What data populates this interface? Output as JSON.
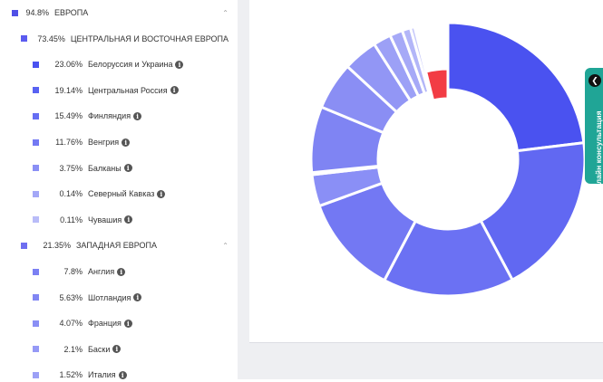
{
  "sidebar": {
    "rows": [
      {
        "pct": "94.8%",
        "label": "ЕВРОПА",
        "level": 0,
        "color": "#5050e6",
        "chevron": true,
        "info": false
      },
      {
        "pct": "73.45%",
        "label": "ЦЕНТРАЛЬНАЯ И ВОСТОЧНАЯ ЕВРОПА",
        "level": 1,
        "color": "#5b5bf0",
        "chevron": true,
        "info": false
      },
      {
        "pct": "23.06%",
        "label": "Белоруссия и Украина",
        "level": 2,
        "color": "#4a52f0",
        "chevron": false,
        "info": true
      },
      {
        "pct": "19.14%",
        "label": "Центральная Россия",
        "level": 2,
        "color": "#5862f2",
        "chevron": false,
        "info": true
      },
      {
        "pct": "15.49%",
        "label": "Финляндия",
        "level": 2,
        "color": "#666ef3",
        "chevron": false,
        "info": true
      },
      {
        "pct": "11.76%",
        "label": "Венгрия",
        "level": 2,
        "color": "#7379f3",
        "chevron": false,
        "info": true
      },
      {
        "pct": "3.75%",
        "label": "Балканы",
        "level": 2,
        "color": "#8a8ff5",
        "chevron": false,
        "info": true
      },
      {
        "pct": "0.14%",
        "label": "Северный Кавказ",
        "level": 2,
        "color": "#a3a7f7",
        "chevron": false,
        "info": true
      },
      {
        "pct": "0.11%",
        "label": "Чувашия",
        "level": 2,
        "color": "#b9bcf8",
        "chevron": false,
        "info": true
      },
      {
        "pct": "21.35%",
        "label": "ЗАПАДНАЯ ЕВРОПА",
        "level": 1,
        "color": "#6e6ef0",
        "chevron": true,
        "info": false
      },
      {
        "pct": "7.8%",
        "label": "Англия",
        "level": 2,
        "color": "#7b80f3",
        "chevron": false,
        "info": true
      },
      {
        "pct": "5.63%",
        "label": "Шотландия",
        "level": 2,
        "color": "#8186f3",
        "chevron": false,
        "info": true
      },
      {
        "pct": "4.07%",
        "label": "Франция",
        "level": 2,
        "color": "#8a8ff5",
        "chevron": false,
        "info": true
      },
      {
        "pct": "2.1%",
        "label": "Баски",
        "level": 2,
        "color": "#9599f6",
        "chevron": false,
        "info": true
      },
      {
        "pct": "1.52%",
        "label": "Италия",
        "level": 2,
        "color": "#9ca0f6",
        "chevron": false,
        "info": true
      }
    ]
  },
  "chart_data": {
    "type": "pie",
    "values": [
      23.06,
      19.14,
      15.49,
      11.76,
      3.75,
      0.14,
      0.11,
      7.8,
      5.63,
      4.07,
      2.1,
      1.52,
      1.0,
      0.5,
      3.93
    ],
    "colors": [
      "#4a52f0",
      "#6168f2",
      "#6b71f3",
      "#7378f3",
      "#8a8ff6",
      "#a3a7f7",
      "#b9bcf8",
      "#7f84f3",
      "#8a8ef4",
      "#9296f5",
      "#9ca0f6",
      "#a6a9f7",
      "#b3b6f8",
      "#c6c8fa",
      "#f23c44"
    ]
  },
  "consult": {
    "label": "Онлайн консультация"
  }
}
